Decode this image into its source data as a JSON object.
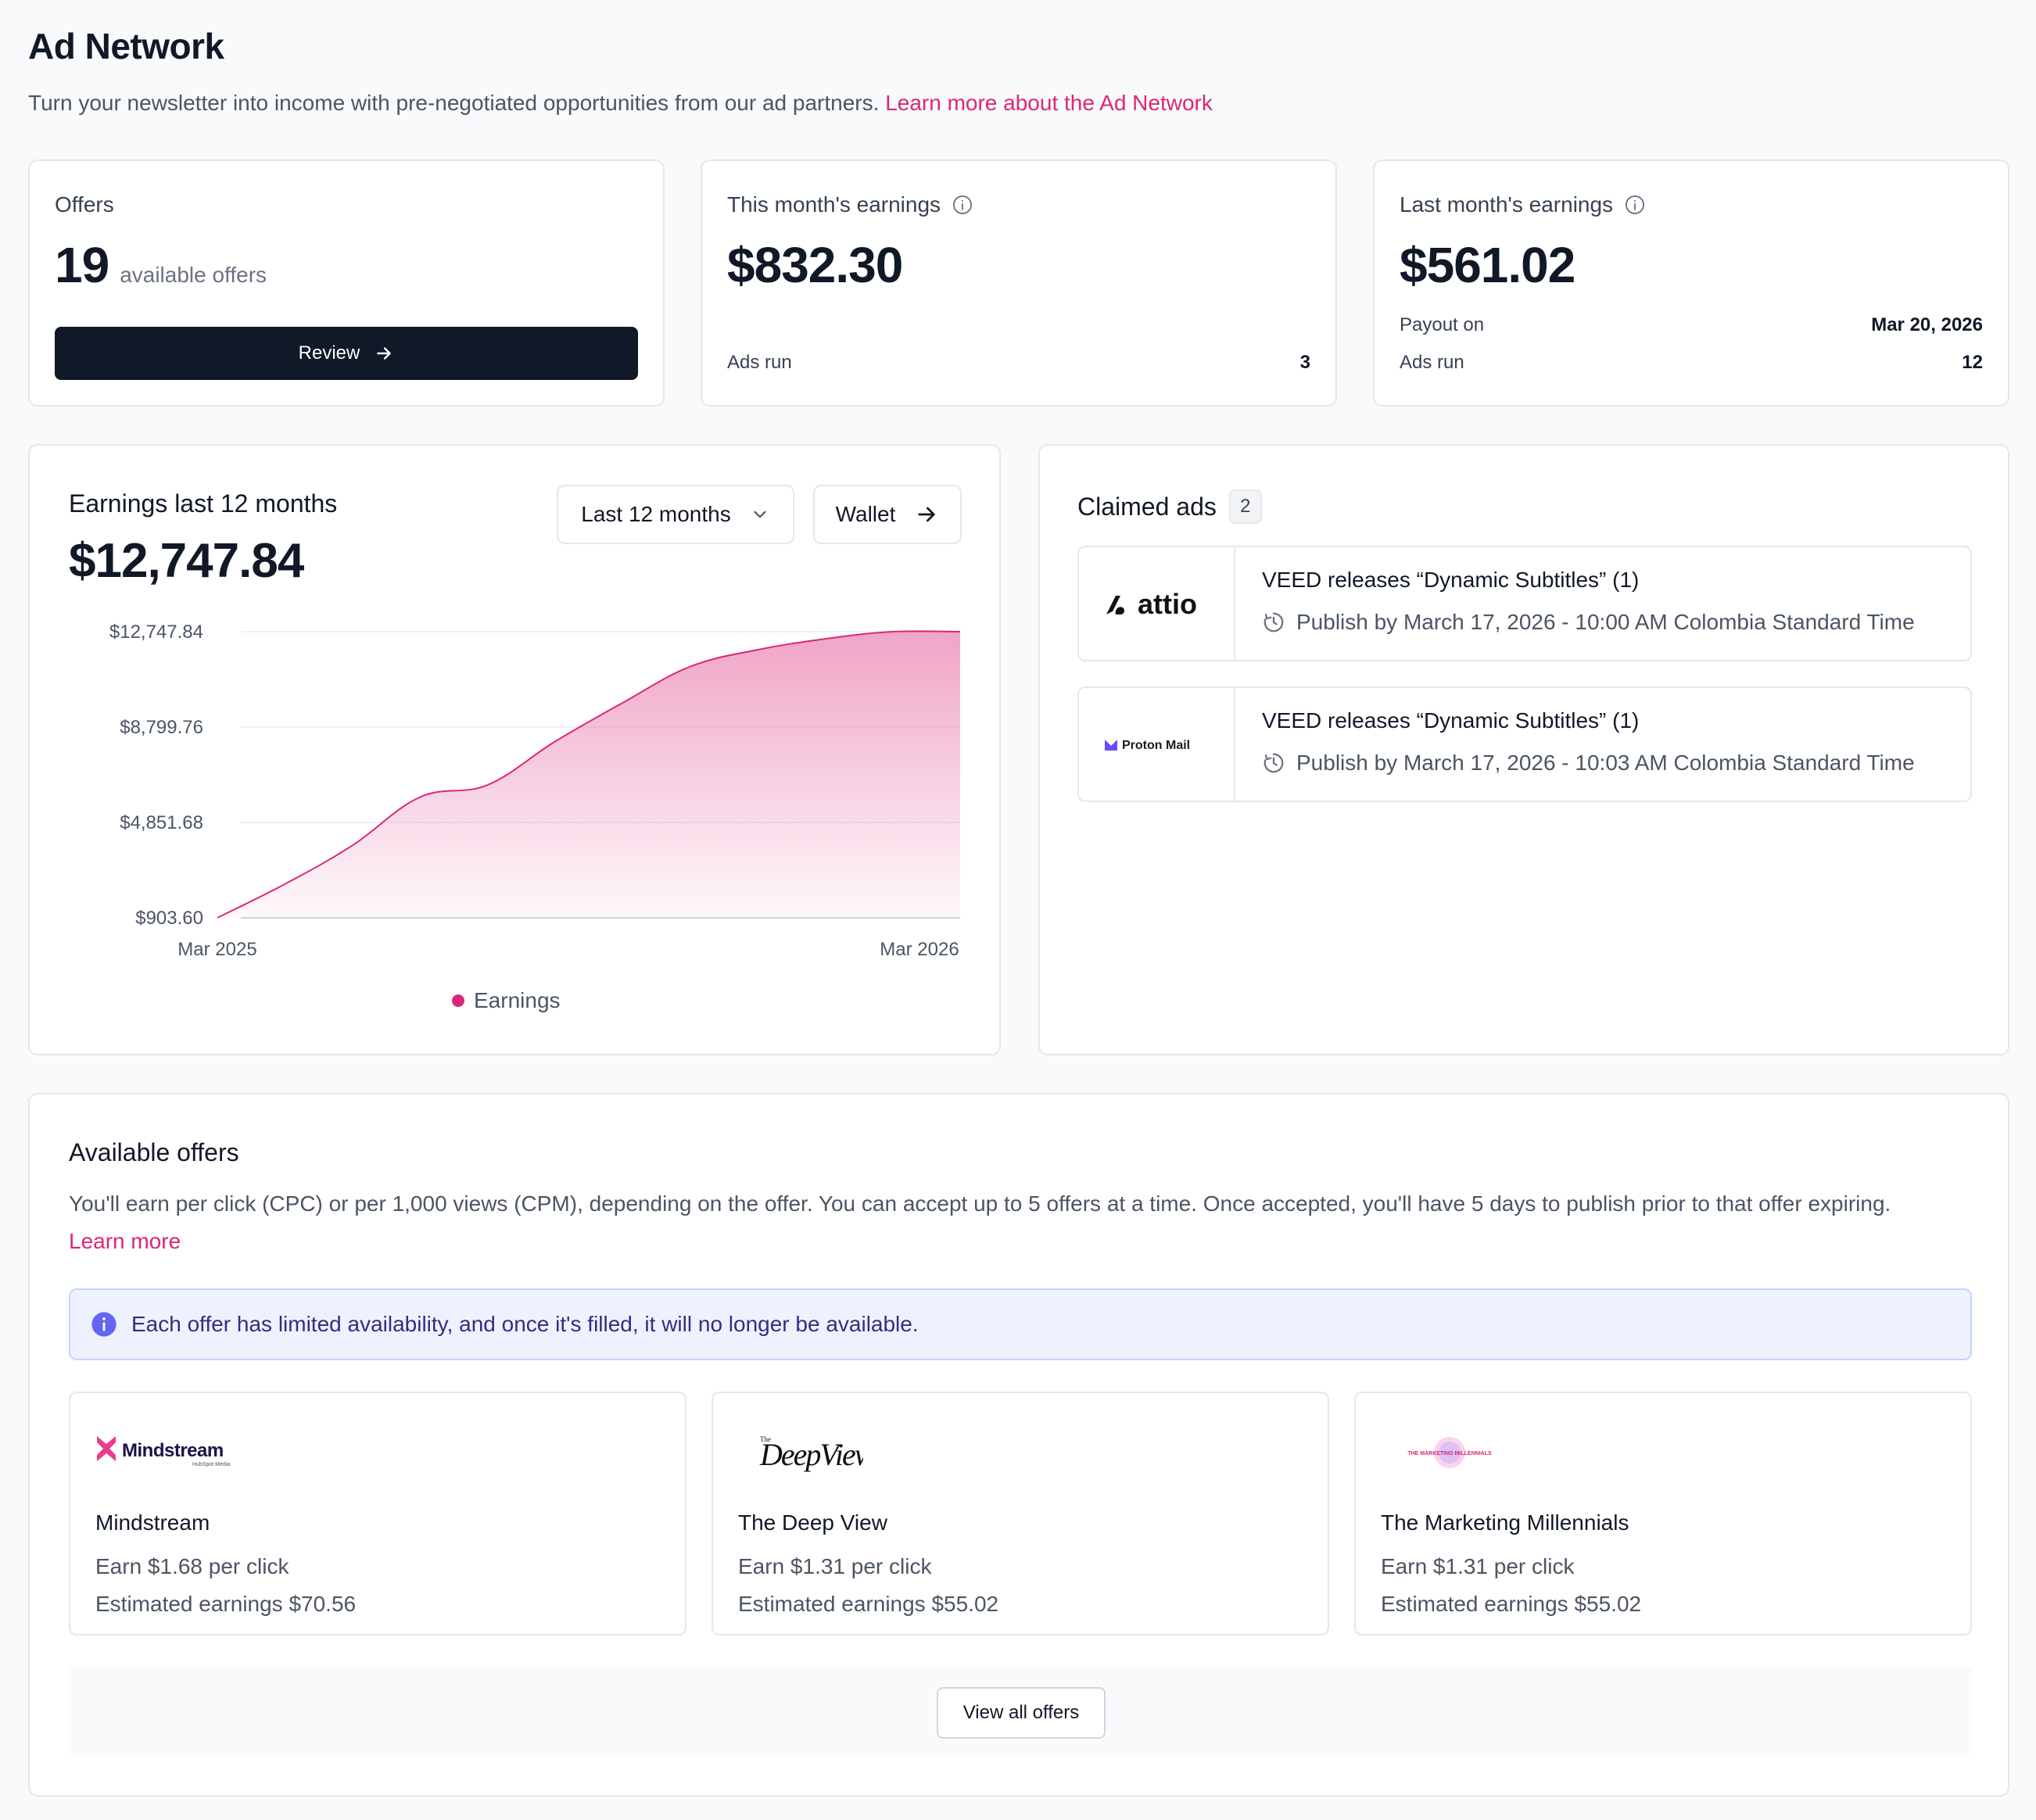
{
  "header": {
    "title": "Ad Network",
    "subtitle": "Turn your newsletter into income with pre-negotiated opportunities from our ad partners.",
    "learn_more_link": "Learn more about the Ad Network"
  },
  "stats": {
    "offers": {
      "label": "Offers",
      "count": "19",
      "count_suffix": "available offers",
      "button_label": "Review",
      "button_icon": "arrow-right-icon"
    },
    "this_month": {
      "label": "This month's earnings",
      "amount": "$832.30",
      "ads_run_label": "Ads run",
      "ads_run_value": "3"
    },
    "last_month": {
      "label": "Last month's earnings",
      "amount": "$561.02",
      "payout_label": "Payout on",
      "payout_value": "Mar 20, 2026",
      "ads_run_label": "Ads run",
      "ads_run_value": "12"
    }
  },
  "earnings": {
    "title": "Earnings last 12 months",
    "total": "$12,747.84",
    "range_select": "Last 12 months",
    "wallet_button": "Wallet"
  },
  "chart_data": {
    "type": "area",
    "title": "Earnings last 12 months",
    "x_start_label": "Mar 2025",
    "x_end_label": "Mar 2026",
    "ylim": [
      903.6,
      12747.84
    ],
    "y_ticks": [
      "$12,747.84",
      "$8,799.76",
      "$4,851.68",
      "$903.60"
    ],
    "y_tick_values": [
      12747.84,
      8799.76,
      4851.68,
      903.6
    ],
    "grid": true,
    "legend": [
      "Earnings"
    ],
    "series": [
      {
        "name": "Earnings",
        "color": "#db2777",
        "values": [
          903.6,
          2300,
          3900,
          5900,
          6400,
          8200,
          9800,
          11300,
          12000,
          12450,
          12747.84,
          12747.84
        ]
      }
    ]
  },
  "claimed_ads": {
    "title": "Claimed ads",
    "count": "2",
    "items": [
      {
        "brand": "attio",
        "title": "VEED releases “Dynamic Subtitles” (1)",
        "publish": "Publish by March 17, 2026 - 10:00 AM Colombia Standard Time"
      },
      {
        "brand": "Proton Mail",
        "title": "VEED releases “Dynamic Subtitles” (1)",
        "publish": "Publish by March 17, 2026 - 10:03 AM Colombia Standard Time"
      }
    ]
  },
  "available": {
    "title": "Available offers",
    "description": "You'll earn per click (CPC) or per 1,000 views (CPM), depending on the offer. You can accept up to 5 offers at a time. Once accepted, you'll have 5 days to publish prior to that offer expiring.",
    "learn_more": "Learn more",
    "notice": "Each offer has limited availability, and once it's filled, it will no longer be available.",
    "offers": [
      {
        "logo_text": "Mindstream",
        "logo_tagline": "HubSpot Media",
        "name": "Mindstream",
        "rate": "Earn $1.68 per click",
        "estimate": "Estimated earnings $70.56"
      },
      {
        "logo_text": "DeepView",
        "logo_prefix": "The",
        "name": "The Deep View",
        "rate": "Earn $1.31 per click",
        "estimate": "Estimated earnings $55.02"
      },
      {
        "logo_text": "THE MARKETING MILLENNIALS",
        "name": "The Marketing Millennials",
        "rate": "Earn $1.31 per click",
        "estimate": "Estimated earnings $55.02"
      }
    ],
    "view_all": "View all offers"
  },
  "colors": {
    "accent": "#db2777",
    "dark_button": "#111827",
    "notice_bg": "#eef2ff",
    "notice_icon": "#6366f1"
  }
}
